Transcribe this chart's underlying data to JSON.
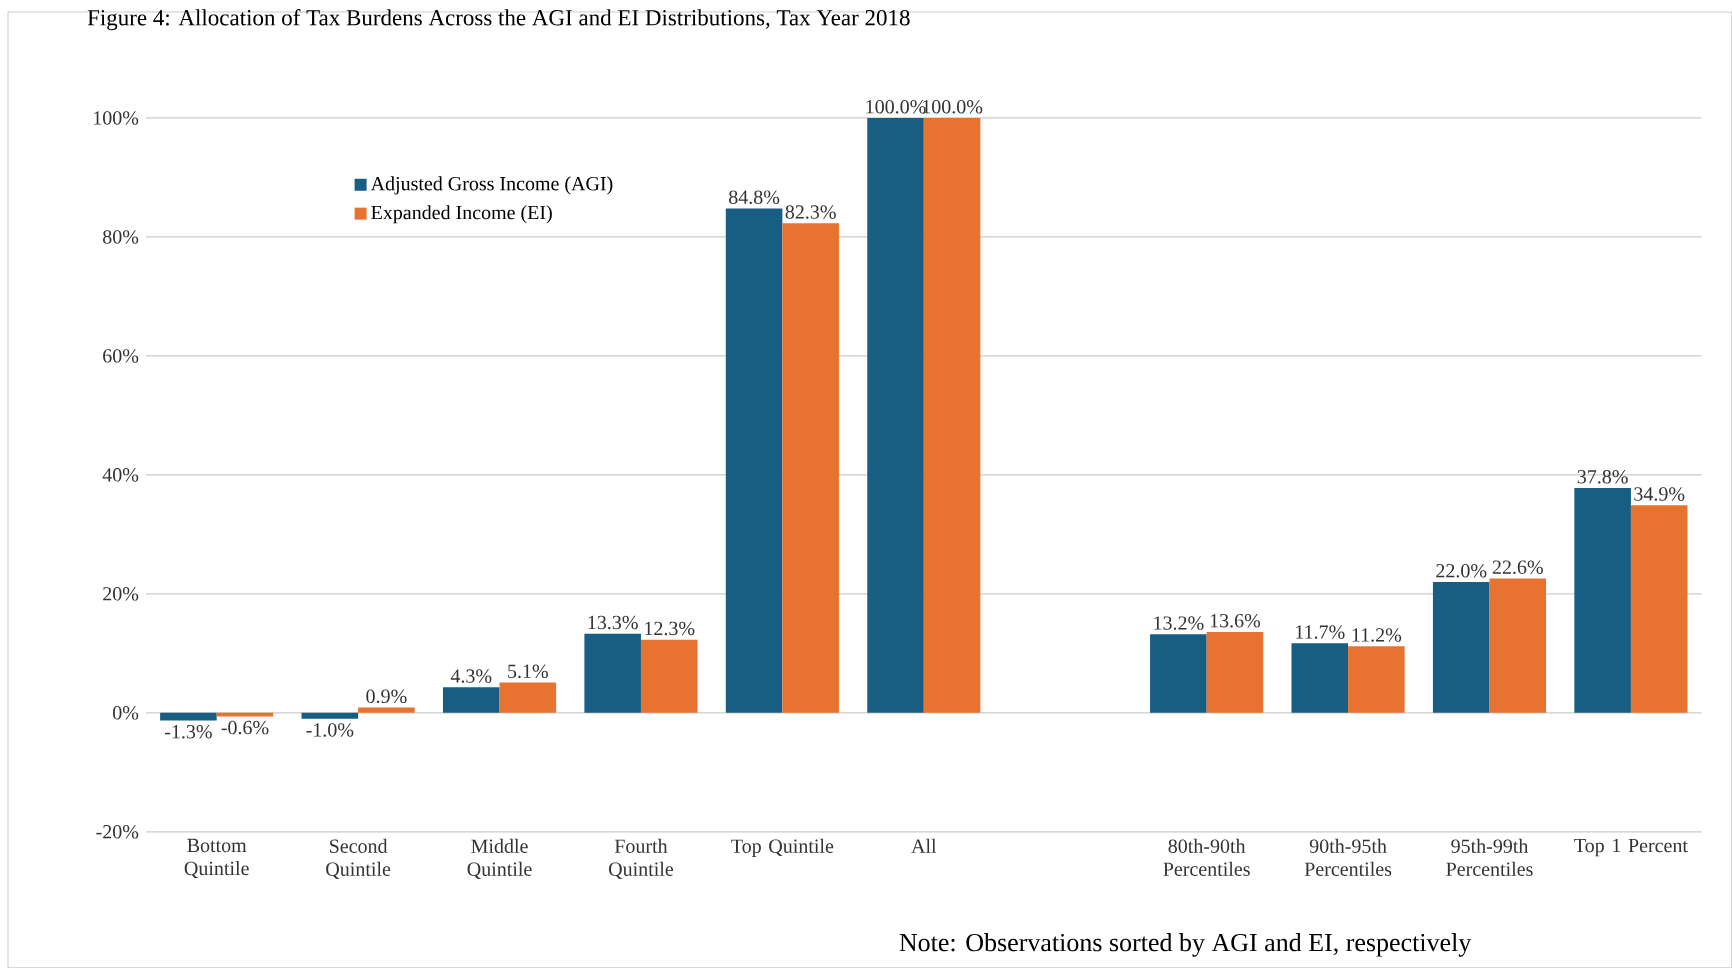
{
  "chart_data": {
    "type": "bar",
    "title": "Figure 4: Allocation of Tax Burdens Across the AGI and EI Distributions, Tax Year 2018",
    "categories": [
      "Bottom Quintile",
      "Second Quintile",
      "Middle Quintile",
      "Fourth Quintile",
      "Top Quintile",
      "All",
      null,
      "80th-90th Percentiles",
      "90th-95th Percentiles",
      "95th-99th Percentiles",
      "Top 1 Percent"
    ],
    "series": [
      {
        "name": "Adjusted Gross Income (AGI)",
        "color": "#175e82",
        "values": [
          -1.3,
          -1.0,
          4.3,
          13.3,
          84.8,
          100.0,
          null,
          13.2,
          11.7,
          22.0,
          37.8
        ],
        "value_labels": [
          "-1.3%",
          "-1.0%",
          "4.3%",
          "13.3%",
          "84.8%",
          "100.0%",
          null,
          "13.2%",
          "11.7%",
          "22.0%",
          "37.8%"
        ]
      },
      {
        "name": "Expanded Income (EI)",
        "color": "#e8722f",
        "values": [
          -0.6,
          0.9,
          5.1,
          12.3,
          82.3,
          100.0,
          null,
          13.6,
          11.2,
          22.6,
          34.9
        ],
        "value_labels": [
          "-0.6%",
          "0.9%",
          "5.1%",
          "12.3%",
          "82.3%",
          "100.0%",
          null,
          "13.6%",
          "11.2%",
          "22.6%",
          "34.9%"
        ]
      }
    ],
    "ylim": [
      -20,
      100
    ],
    "yticks": [
      {
        "value": -20,
        "label": "-20%"
      },
      {
        "value": 0,
        "label": "0%"
      },
      {
        "value": 20,
        "label": "20%"
      },
      {
        "value": 40,
        "label": "40%"
      },
      {
        "value": 60,
        "label": "60%"
      },
      {
        "value": 80,
        "label": "80%"
      },
      {
        "value": 100,
        "label": "100%"
      }
    ],
    "grid": "y",
    "legend": "top left",
    "annotations": [
      "Note: Observations sorted by AGI and EI, respectively"
    ]
  }
}
